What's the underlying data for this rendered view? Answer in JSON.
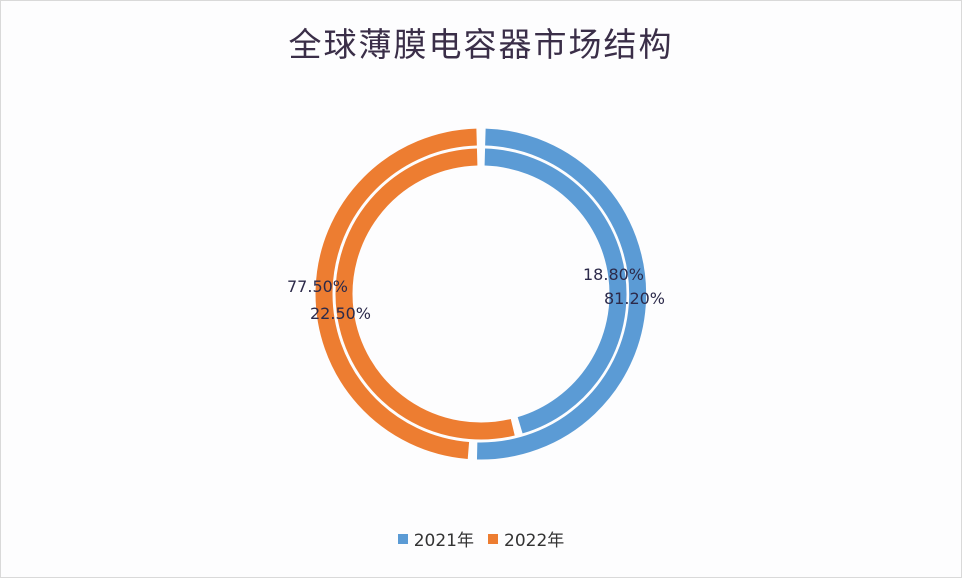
{
  "chart_data": {
    "type": "pie",
    "subtype": "doughnut",
    "title": "全球薄膜电容器市场结构",
    "categories": [
      "2021年",
      "2022年"
    ],
    "series": [
      {
        "name": "outer ring",
        "values": [
          81.2,
          18.8
        ],
        "labels": [
          "81.20%",
          "18.80%"
        ]
      },
      {
        "name": "inner ring",
        "values": [
          77.5,
          22.5
        ],
        "labels": [
          "77.50%",
          "22.50%"
        ]
      }
    ],
    "data_labels": [
      {
        "text": "18.80%",
        "position": "right"
      },
      {
        "text": "81.20%",
        "position": "right"
      },
      {
        "text": "77.50%",
        "position": "left"
      },
      {
        "text": "22.50%",
        "position": "left"
      }
    ],
    "legend": {
      "position": "bottom",
      "entries": [
        "2021年",
        "2022年"
      ]
    },
    "colors": {
      "2021年": "#5b9bd5",
      "2022年": "#ed7d31"
    }
  },
  "title": "全球薄膜电容器市场结构",
  "labels": {
    "right_top": "18.80%",
    "right_bottom": "81.20%",
    "left_top": "77.50%",
    "left_bottom": "22.50%"
  },
  "legend": {
    "item1": "2021年",
    "item2": "2022年",
    "color1": "#5b9bd5",
    "color2": "#ed7d31"
  }
}
